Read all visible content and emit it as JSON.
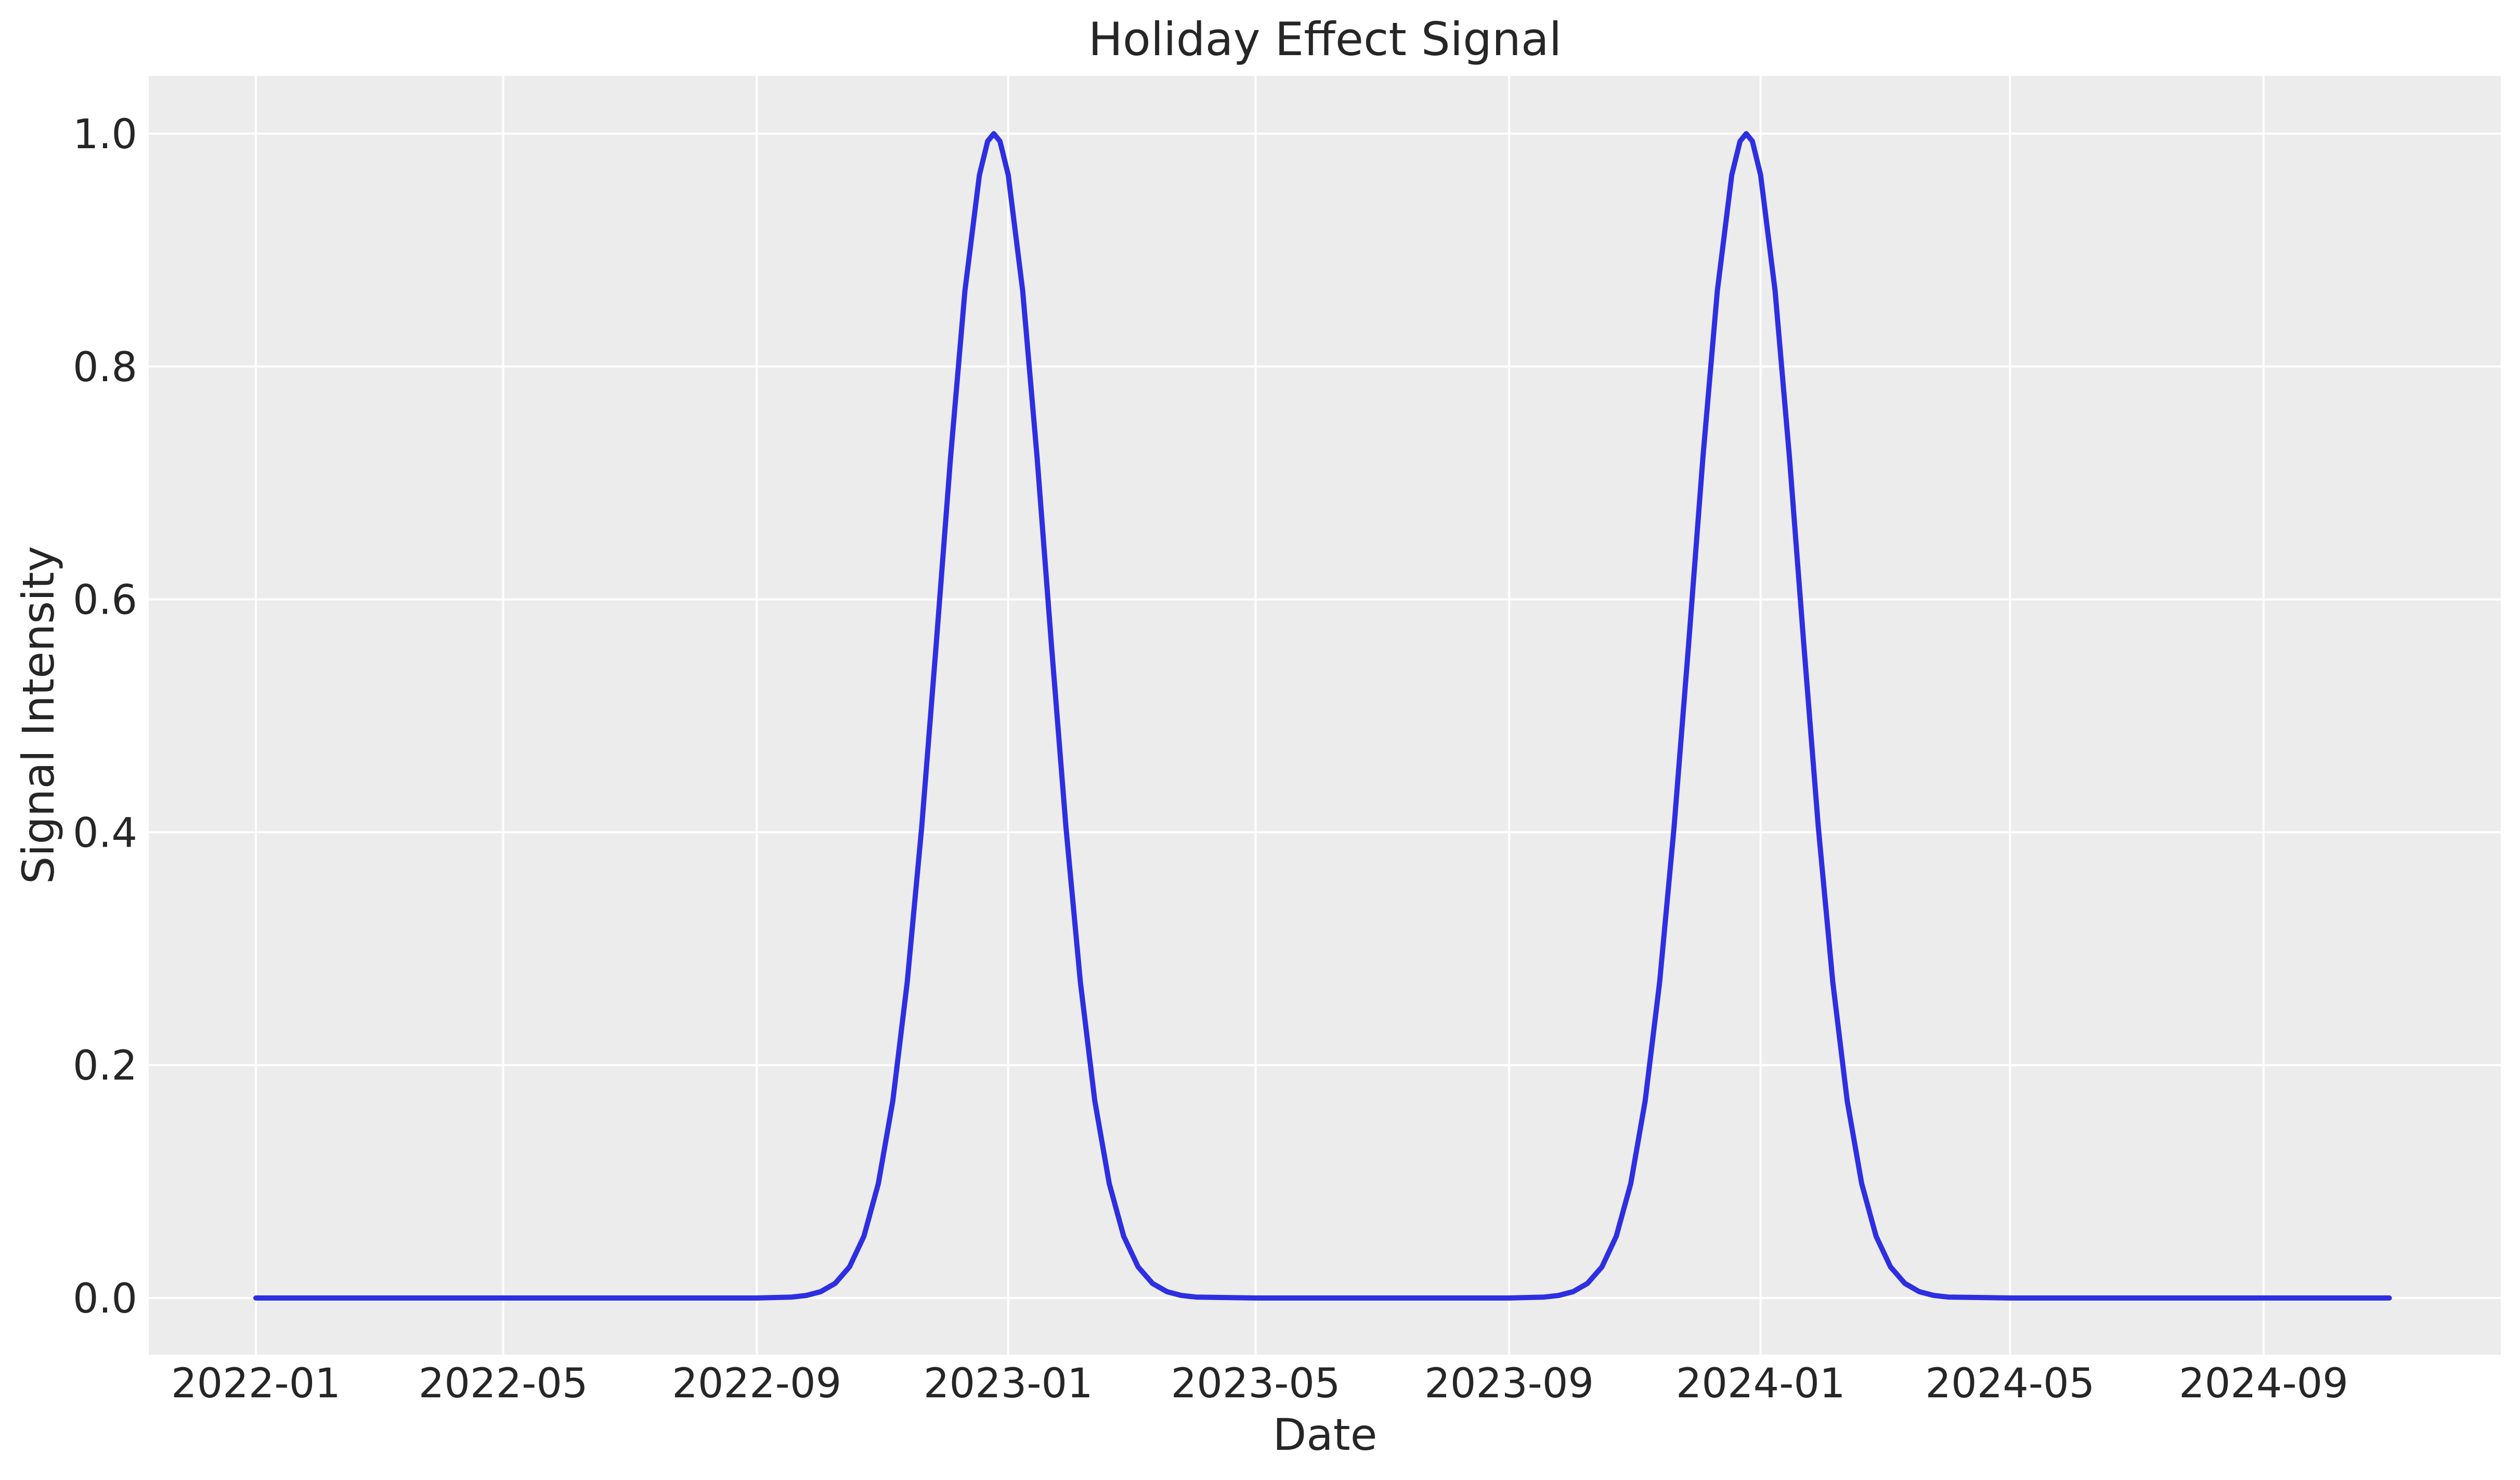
{
  "chart_data": {
    "type": "line",
    "title": "Holiday Effect Signal",
    "xlabel": "Date",
    "ylabel": "Signal Intensity",
    "grid": true,
    "legend": false,
    "ylim": [
      -0.05,
      1.05
    ],
    "x_range": [
      "2022-01-01",
      "2024-11-01"
    ],
    "y_ticks": [
      {
        "label": "0.0",
        "value": 0.0
      },
      {
        "label": "0.2",
        "value": 0.2
      },
      {
        "label": "0.4",
        "value": 0.4
      },
      {
        "label": "0.6",
        "value": 0.6
      },
      {
        "label": "0.8",
        "value": 0.8
      },
      {
        "label": "1.0",
        "value": 1.0
      }
    ],
    "x_ticks": [
      {
        "label": "2022-01",
        "date": "2022-01-01"
      },
      {
        "label": "2022-05",
        "date": "2022-05-01"
      },
      {
        "label": "2022-09",
        "date": "2022-09-01"
      },
      {
        "label": "2023-01",
        "date": "2023-01-01"
      },
      {
        "label": "2023-05",
        "date": "2023-05-01"
      },
      {
        "label": "2023-09",
        "date": "2023-09-01"
      },
      {
        "label": "2024-01",
        "date": "2024-01-01"
      },
      {
        "label": "2024-05",
        "date": "2024-05-01"
      },
      {
        "label": "2024-09",
        "date": "2024-09-01"
      }
    ],
    "colors": {
      "figure_background": "#ffffff",
      "plot_background": "#ececec",
      "grid": "#ffffff",
      "text": "#262626",
      "line": "#2e2ee2"
    },
    "series": [
      {
        "name": "Holiday Effect Signal",
        "color": "#2e2ee2",
        "shape": "gaussian peaks centered on Christmas, amplitude 1.0, sigma ~26 days",
        "peak_dates": [
          "2022-12-25",
          "2023-12-25"
        ],
        "peak_value": 1.0,
        "baseline_value": 0.0,
        "points": [
          [
            "2022-01-01",
            0.0
          ],
          [
            "2022-02-01",
            0.0
          ],
          [
            "2022-03-01",
            0.0
          ],
          [
            "2022-04-01",
            0.0
          ],
          [
            "2022-05-01",
            0.0
          ],
          [
            "2022-06-01",
            0.0
          ],
          [
            "2022-07-01",
            0.0
          ],
          [
            "2022-08-01",
            0.0
          ],
          [
            "2022-09-01",
            0.0
          ],
          [
            "2022-09-18",
            0.0008
          ],
          [
            "2022-09-25",
            0.0022
          ],
          [
            "2022-10-02",
            0.0054
          ],
          [
            "2022-10-09",
            0.0125
          ],
          [
            "2022-10-16",
            0.0267
          ],
          [
            "2022-10-23",
            0.0531
          ],
          [
            "2022-10-30",
            0.0983
          ],
          [
            "2022-11-06",
            0.1693
          ],
          [
            "2022-11-13",
            0.2712
          ],
          [
            "2022-11-20",
            0.4041
          ],
          [
            "2022-11-27",
            0.56
          ],
          [
            "2022-12-04",
            0.7217
          ],
          [
            "2022-12-11",
            0.8651
          ],
          [
            "2022-12-18",
            0.9644
          ],
          [
            "2022-12-22",
            0.9934
          ],
          [
            "2022-12-25",
            1.0
          ],
          [
            "2022-12-28",
            0.9934
          ],
          [
            "2023-01-01",
            0.9644
          ],
          [
            "2023-01-08",
            0.8651
          ],
          [
            "2023-01-15",
            0.7217
          ],
          [
            "2023-01-22",
            0.56
          ],
          [
            "2023-01-29",
            0.4041
          ],
          [
            "2023-02-05",
            0.2712
          ],
          [
            "2023-02-12",
            0.1693
          ],
          [
            "2023-02-19",
            0.0983
          ],
          [
            "2023-02-26",
            0.0531
          ],
          [
            "2023-03-05",
            0.0267
          ],
          [
            "2023-03-12",
            0.0125
          ],
          [
            "2023-03-19",
            0.0054
          ],
          [
            "2023-03-26",
            0.0022
          ],
          [
            "2023-04-02",
            0.0008
          ],
          [
            "2023-05-01",
            0.0
          ],
          [
            "2023-06-01",
            0.0
          ],
          [
            "2023-07-01",
            0.0
          ],
          [
            "2023-08-01",
            0.0
          ],
          [
            "2023-09-01",
            0.0
          ],
          [
            "2023-09-18",
            0.0008
          ],
          [
            "2023-09-25",
            0.0022
          ],
          [
            "2023-10-02",
            0.0054
          ],
          [
            "2023-10-09",
            0.0125
          ],
          [
            "2023-10-16",
            0.0267
          ],
          [
            "2023-10-23",
            0.0531
          ],
          [
            "2023-10-30",
            0.0983
          ],
          [
            "2023-11-06",
            0.1693
          ],
          [
            "2023-11-13",
            0.2712
          ],
          [
            "2023-11-20",
            0.4041
          ],
          [
            "2023-11-27",
            0.56
          ],
          [
            "2023-12-04",
            0.7217
          ],
          [
            "2023-12-11",
            0.8651
          ],
          [
            "2023-12-18",
            0.9644
          ],
          [
            "2023-12-22",
            0.9934
          ],
          [
            "2023-12-25",
            1.0
          ],
          [
            "2023-12-28",
            0.9934
          ],
          [
            "2024-01-01",
            0.9644
          ],
          [
            "2024-01-08",
            0.8651
          ],
          [
            "2024-01-15",
            0.7217
          ],
          [
            "2024-01-22",
            0.56
          ],
          [
            "2024-01-29",
            0.4041
          ],
          [
            "2024-02-05",
            0.2712
          ],
          [
            "2024-02-12",
            0.1693
          ],
          [
            "2024-02-19",
            0.0983
          ],
          [
            "2024-02-26",
            0.0531
          ],
          [
            "2024-03-04",
            0.0267
          ],
          [
            "2024-03-11",
            0.0125
          ],
          [
            "2024-03-18",
            0.0054
          ],
          [
            "2024-03-25",
            0.0022
          ],
          [
            "2024-04-01",
            0.0008
          ],
          [
            "2024-05-01",
            0.0
          ],
          [
            "2024-06-01",
            0.0
          ],
          [
            "2024-07-01",
            0.0
          ],
          [
            "2024-08-01",
            0.0
          ],
          [
            "2024-09-01",
            0.0
          ],
          [
            "2024-10-01",
            0.0
          ],
          [
            "2024-11-01",
            0.0
          ]
        ]
      }
    ]
  }
}
